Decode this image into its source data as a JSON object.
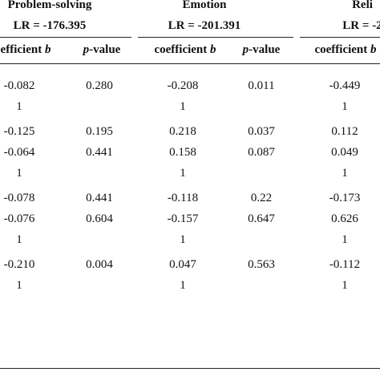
{
  "header": {
    "groups": [
      {
        "title": "Problem-solving",
        "lr": "LR = -176.395"
      },
      {
        "title": "Emotion",
        "lr": "LR = -201.391"
      },
      {
        "title": "Reli",
        "lr": "LR = -2"
      }
    ],
    "columns": [
      {
        "prefix": "efficient ",
        "suffix": "b"
      },
      {
        "prefix": "",
        "suffix": "p",
        "rest": "-value"
      },
      {
        "prefix": "coefficient ",
        "suffix": "b"
      },
      {
        "prefix": "",
        "suffix": "p",
        "rest": "-value"
      },
      {
        "prefix": "coefficient ",
        "suffix": "b"
      }
    ]
  },
  "rows": [
    [
      "-0.082",
      "0.280",
      "-0.208",
      "0.011",
      "-0.449"
    ],
    [
      "1",
      "",
      "1",
      "",
      "1"
    ],
    [
      "-0.125",
      "0.195",
      "0.218",
      "0.037",
      "0.112"
    ],
    [
      "-0.064",
      "0.441",
      "0.158",
      "0.087",
      "0.049"
    ],
    [
      "1",
      "",
      "1",
      "",
      "1"
    ],
    [
      "-0.078",
      "0.441",
      "-0.118",
      "0.22",
      "-0.173"
    ],
    [
      "-0.076",
      "0.604",
      "-0.157",
      "0.647",
      "0.626"
    ],
    [
      "1",
      "",
      "1",
      "",
      "1"
    ],
    [
      "-0.210",
      "0.004",
      "0.047",
      "0.563",
      "-0.112"
    ],
    [
      "1",
      "",
      "1",
      "",
      "1"
    ]
  ]
}
